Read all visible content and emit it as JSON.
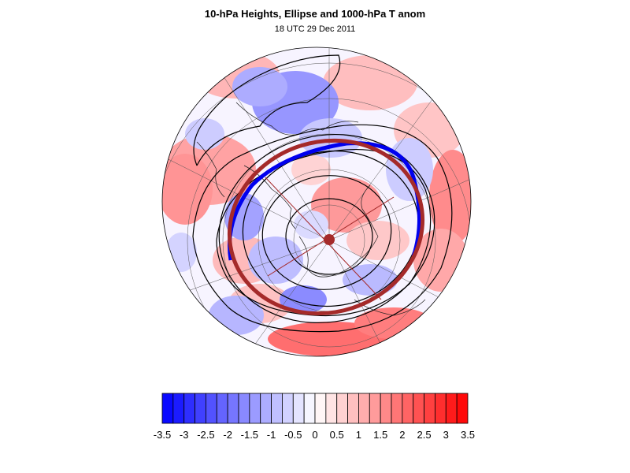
{
  "title": "10-hPa Heights, Ellipse and 1000-hPa T anom",
  "subtitle": "18 UTC 29 Dec 2011",
  "colorbar": {
    "labels": [
      "-3.5",
      "-3",
      "-2.5",
      "-2",
      "-1.5",
      "-1",
      "-0.5",
      "0",
      "0.5",
      "1",
      "1.5",
      "2",
      "2.5",
      "3",
      "3.5"
    ],
    "min": -3.5,
    "max": 3.5,
    "step": 0.25,
    "negative_color": "#0000ff",
    "positive_color": "#ff0000"
  },
  "colors": {
    "ellipse": "#a52a2a",
    "contour_blue": "#0000ee",
    "contour": "#000000",
    "grid": "#555555"
  }
}
